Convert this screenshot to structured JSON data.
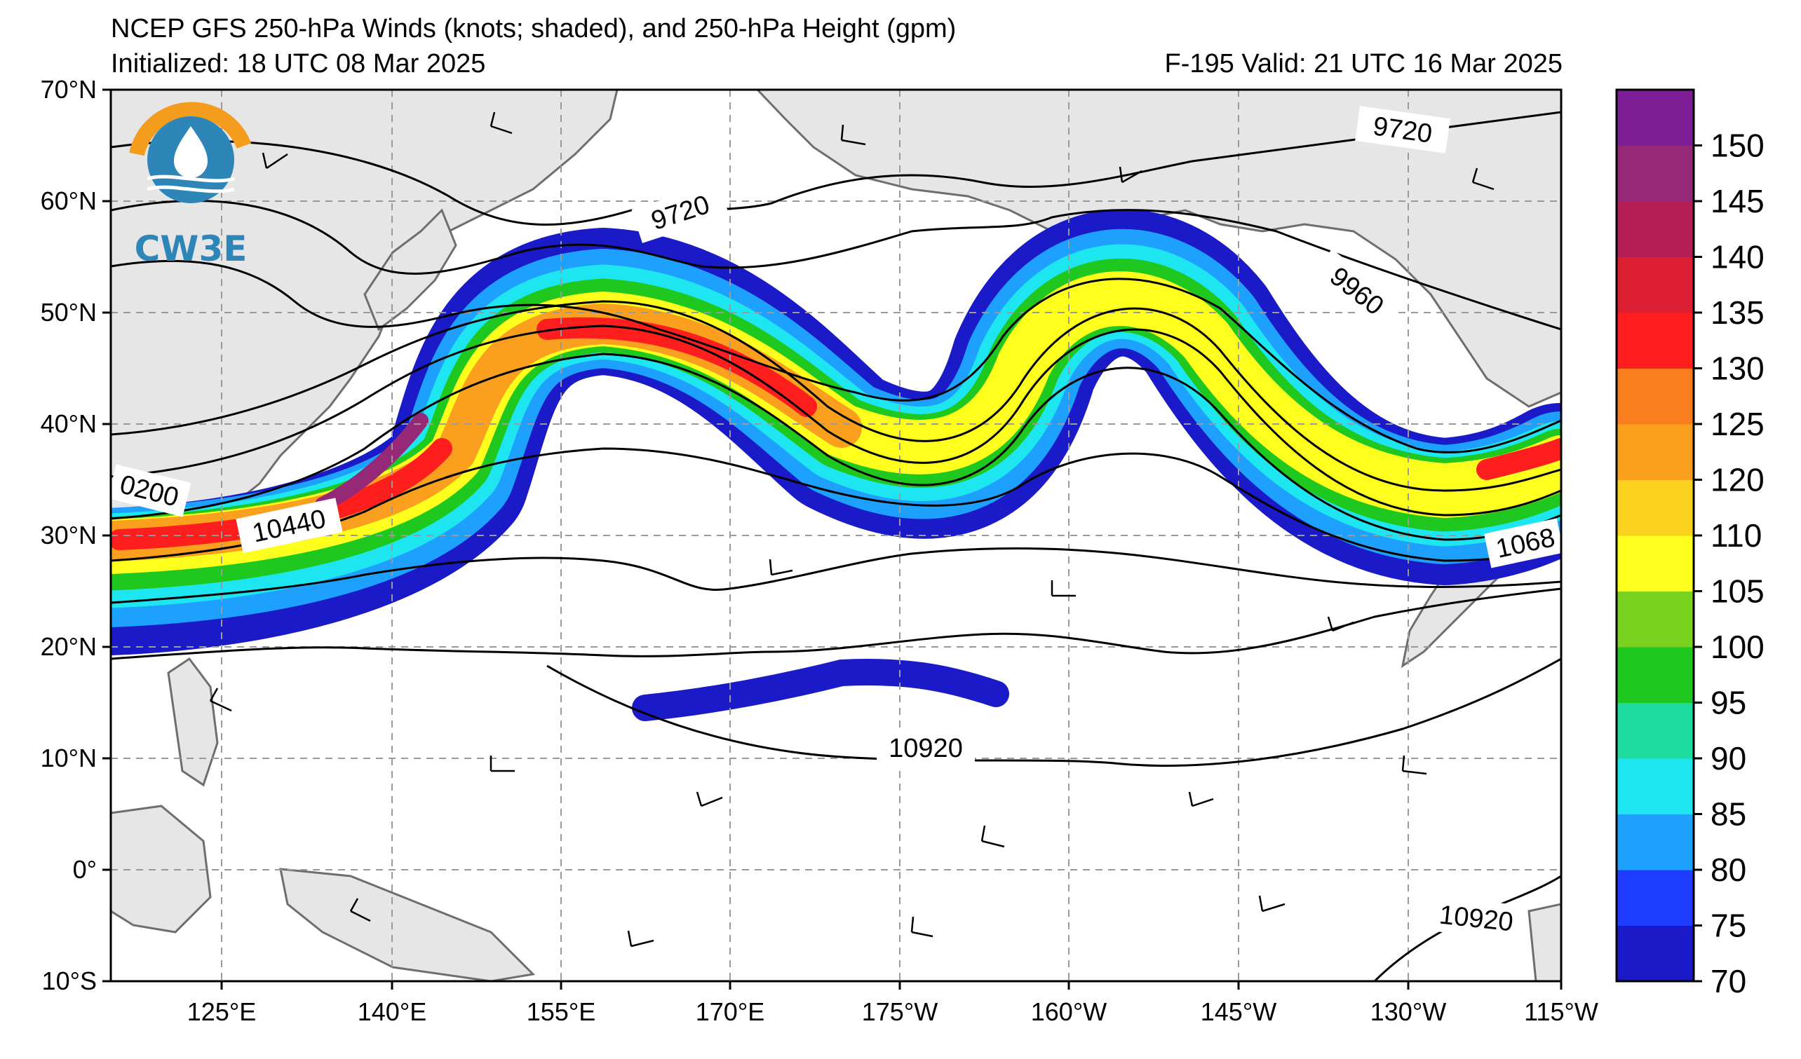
{
  "header": {
    "title": "NCEP GFS 250-hPa Winds (knots; shaded), and 250-hPa Height (gpm)",
    "initialized": "Initialized: 18 UTC 08 Mar 2025",
    "valid": "F-195  Valid: 21 UTC 16 Mar 2025"
  },
  "logo": {
    "text": "CW3E"
  },
  "map": {
    "lat_labels": [
      "70°N",
      "60°N",
      "50°N",
      "40°N",
      "30°N",
      "20°N",
      "10°N",
      "0°",
      "10°S"
    ],
    "lon_labels": [
      "125°E",
      "140°E",
      "155°E",
      "170°E",
      "175°W",
      "160°W",
      "145°W",
      "130°W",
      "115°W"
    ],
    "contour_labels": [
      "9720",
      "9720",
      "9960",
      "0200",
      "10440",
      "1068",
      "10920",
      "10920"
    ]
  },
  "colorbar": {
    "levels": [
      70,
      75,
      80,
      85,
      90,
      95,
      100,
      105,
      110,
      120,
      125,
      130,
      135,
      140,
      145,
      150
    ],
    "labels": [
      "70",
      "75",
      "80",
      "85",
      "90",
      "95",
      "100",
      "105",
      "110",
      "120",
      "125",
      "130",
      "135",
      "140",
      "145",
      "150"
    ],
    "colors": [
      "#1a1ac8",
      "#1e3cff",
      "#1ea0ff",
      "#1ee6f0",
      "#1edca0",
      "#1ec81e",
      "#78d21e",
      "#ffff1e",
      "#fad21e",
      "#faa01e",
      "#fa7d1e",
      "#ff1e1e",
      "#dc1e32",
      "#b41e55",
      "#962878",
      "#7d1e96"
    ]
  }
}
